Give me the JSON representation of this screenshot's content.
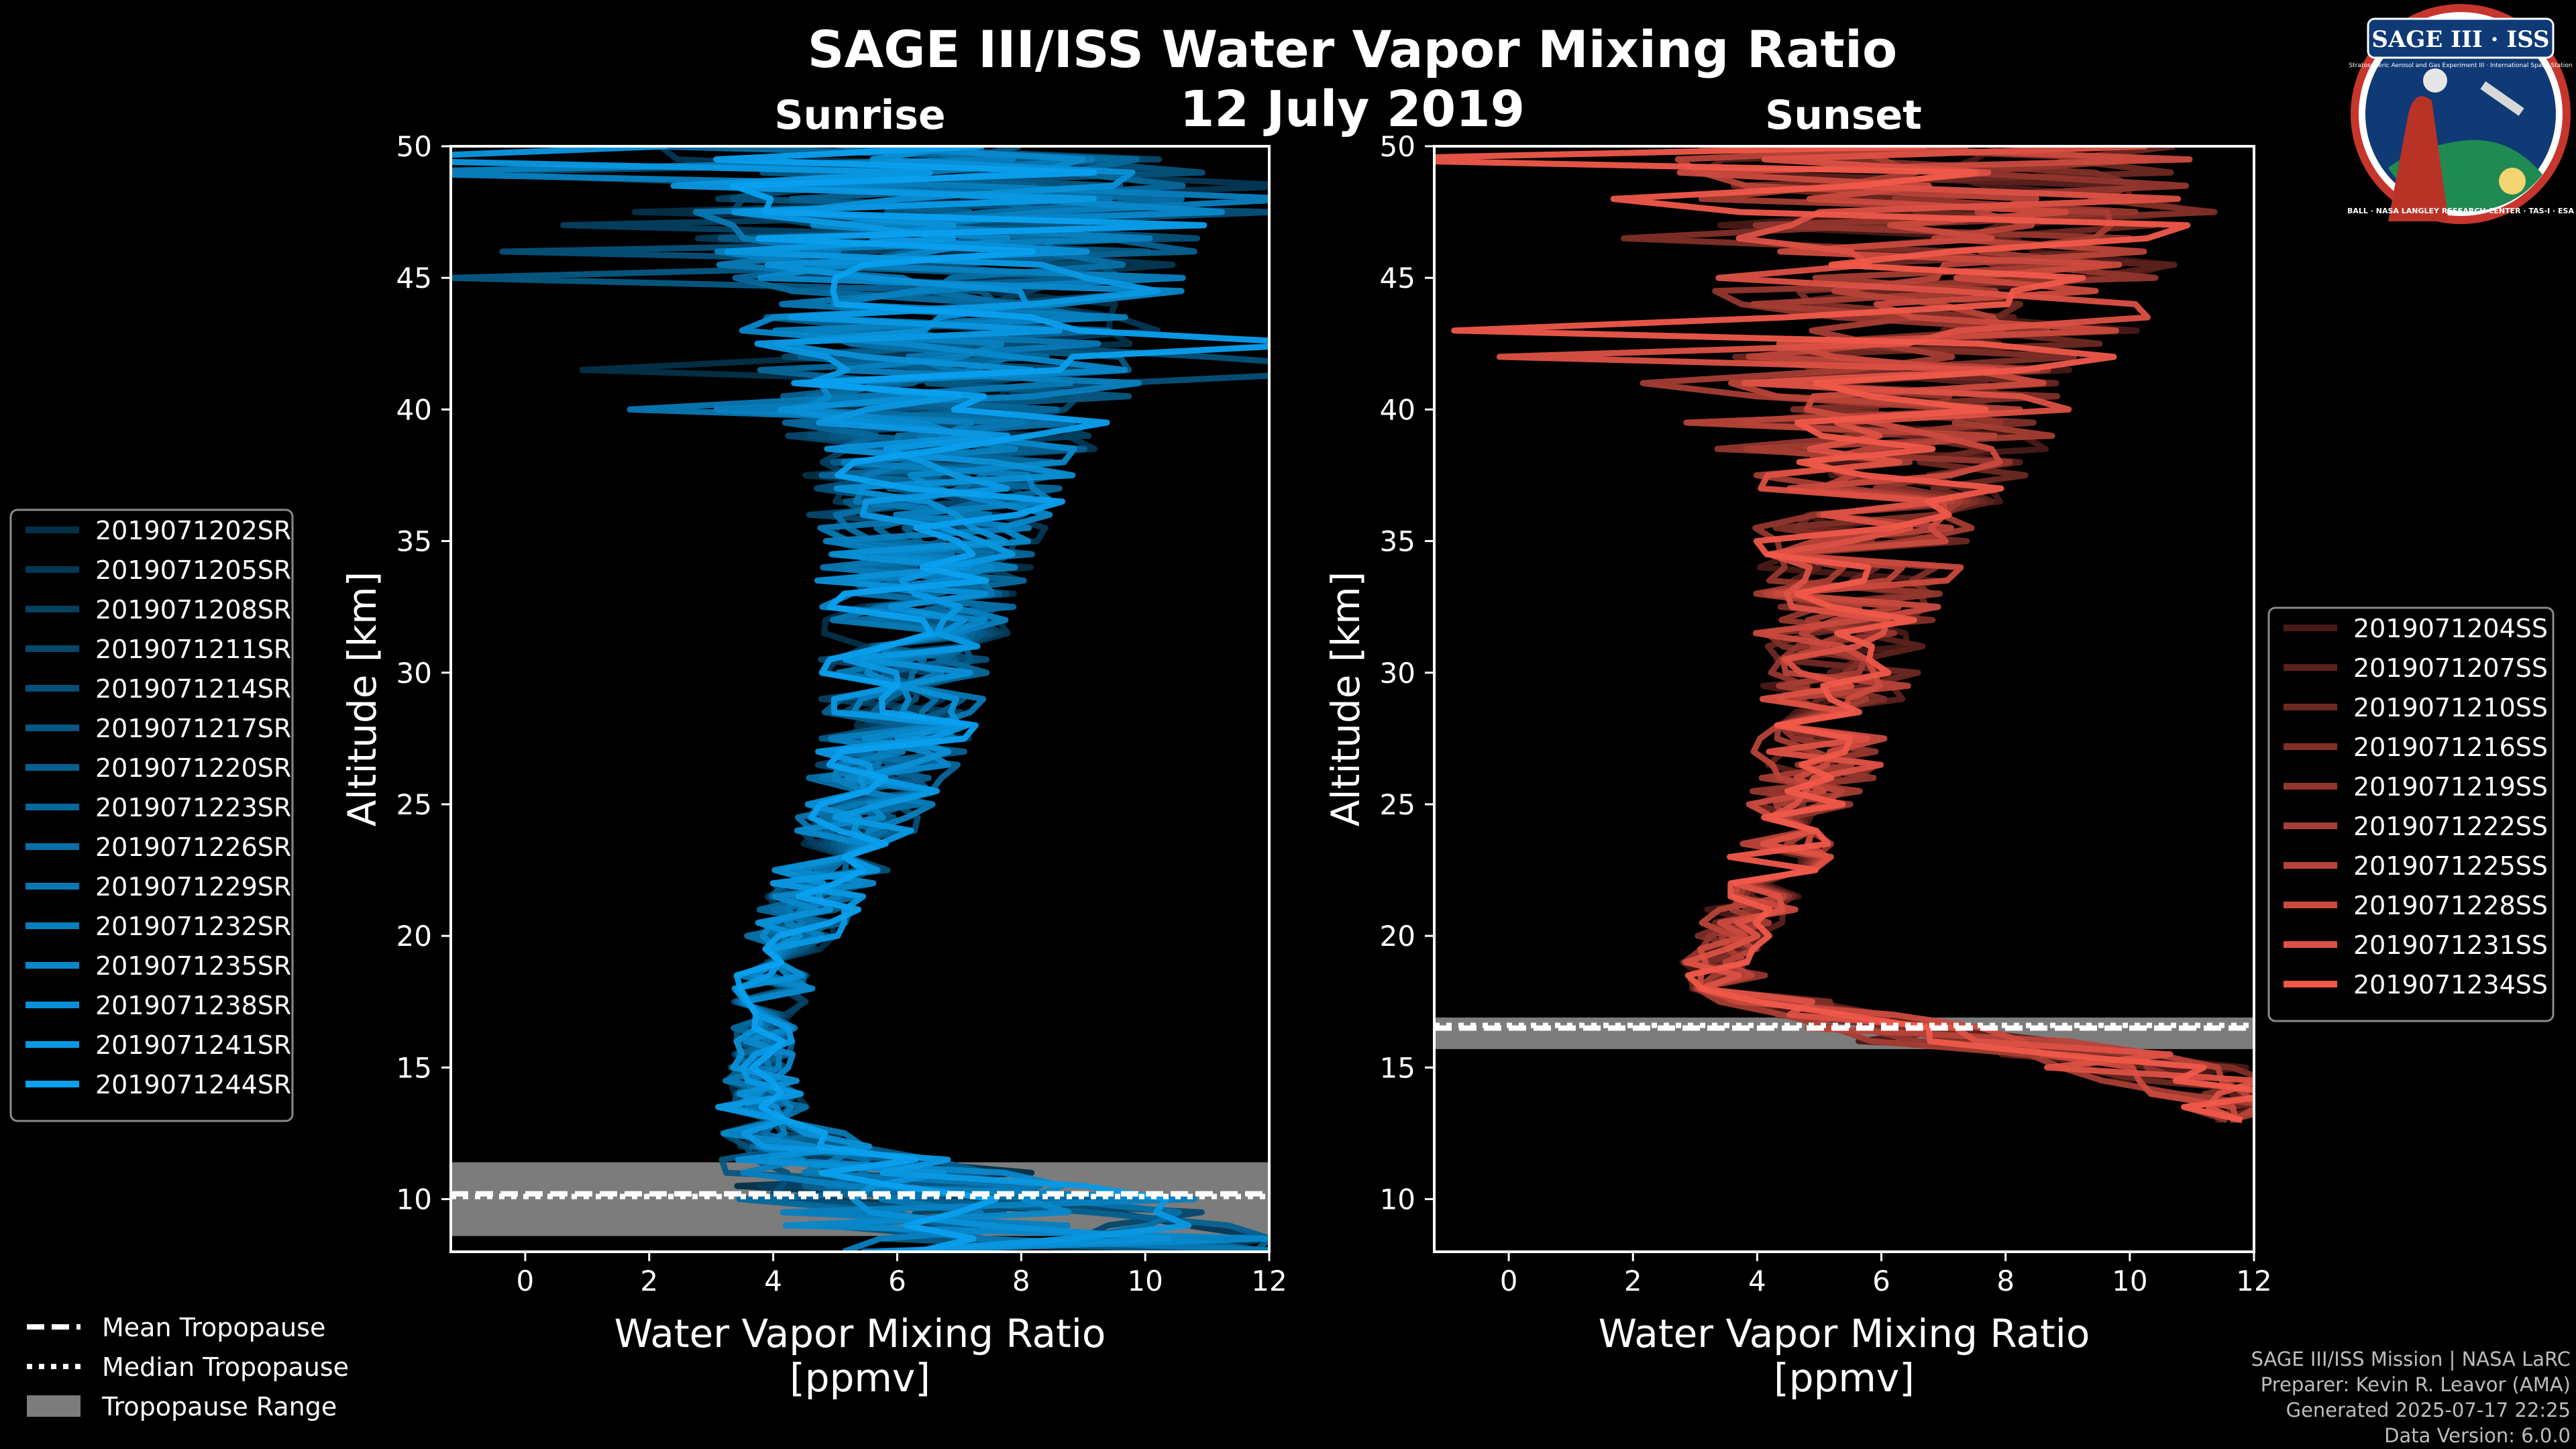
{
  "figure": {
    "title": "SAGE III/ISS Water Vapor Mixing Ratio",
    "date": "12 July 2019",
    "credits": [
      "SAGE III/ISS Mission | NASA LaRC",
      "Preparer: Kevin R. Leavor (AMA)",
      "Generated 2025-07-17 22:25",
      "Data Version: 6.0.0"
    ],
    "logo_text": "SAGE III · ISS",
    "logo_ring_text": "BALL · NASA LANGLEY RESEARCH CENTER · TAS-I · ESA",
    "logo_subtext": "Stratospheric Aerosol and Gas Experiment III · International Space Station"
  },
  "legend_tropopause": {
    "items": [
      {
        "label": "Mean Tropopause",
        "style": "dashed"
      },
      {
        "label": "Median Tropopause",
        "style": "dotted"
      },
      {
        "label": "Tropopause Range",
        "style": "patch"
      }
    ]
  },
  "chart_data": [
    {
      "type": "line",
      "panel": "sunrise",
      "title": "Sunrise",
      "xlabel": "Water Vapor Mixing Ratio\n[ppmv]",
      "ylabel": "Altitude [km]",
      "xlim": [
        -1.2,
        12
      ],
      "ylim": [
        8,
        50
      ],
      "xticks": [
        0,
        2,
        4,
        6,
        8,
        10,
        12
      ],
      "yticks": [
        10,
        15,
        20,
        25,
        30,
        35,
        40,
        45,
        50
      ],
      "base_color": "#0aa0ef",
      "tropopause": {
        "mean": 10.2,
        "median": 10.1,
        "range": [
          8.6,
          11.4
        ]
      },
      "legend_position": "left",
      "profile_model": {
        "altitude_km": [
          8,
          10,
          12,
          14,
          15,
          16,
          17,
          18,
          19,
          20,
          22,
          24,
          26,
          28,
          30,
          32,
          35,
          38,
          41,
          44,
          47,
          50
        ],
        "median_ppmv": [
          9.0,
          7.0,
          4.3,
          3.8,
          3.8,
          3.8,
          3.9,
          4.0,
          4.1,
          4.3,
          4.8,
          5.3,
          5.7,
          6.0,
          6.2,
          6.3,
          6.5,
          6.7,
          6.8,
          6.9,
          6.8,
          6.5
        ],
        "spread_ppmv": [
          3.0,
          3.0,
          1.0,
          0.5,
          0.4,
          0.4,
          0.4,
          0.5,
          0.5,
          0.6,
          0.7,
          0.8,
          0.9,
          1.0,
          1.1,
          1.2,
          1.4,
          1.8,
          2.4,
          2.8,
          3.2,
          3.4
        ]
      },
      "series": [
        {
          "name": "2019071202SR"
        },
        {
          "name": "2019071205SR"
        },
        {
          "name": "2019071208SR"
        },
        {
          "name": "2019071211SR"
        },
        {
          "name": "2019071214SR"
        },
        {
          "name": "2019071217SR"
        },
        {
          "name": "2019071220SR"
        },
        {
          "name": "2019071223SR"
        },
        {
          "name": "2019071226SR"
        },
        {
          "name": "2019071229SR"
        },
        {
          "name": "2019071232SR"
        },
        {
          "name": "2019071235SR"
        },
        {
          "name": "2019071238SR"
        },
        {
          "name": "2019071241SR"
        },
        {
          "name": "2019071244SR"
        }
      ]
    },
    {
      "type": "line",
      "panel": "sunset",
      "title": "Sunset",
      "xlabel": "Water Vapor Mixing Ratio\n[ppmv]",
      "ylabel": "Altitude [km]",
      "xlim": [
        -1.2,
        12
      ],
      "ylim": [
        8,
        50
      ],
      "xticks": [
        0,
        2,
        4,
        6,
        8,
        10,
        12
      ],
      "yticks": [
        10,
        15,
        20,
        25,
        30,
        35,
        40,
        45,
        50
      ],
      "base_color": "#f0584a",
      "tropopause": {
        "mean": 16.5,
        "median": 16.6,
        "range": [
          15.7,
          16.9
        ]
      },
      "legend_position": "right",
      "profile_model": {
        "altitude_km": [
          13,
          14,
          15,
          16,
          17,
          18,
          19,
          20,
          22,
          24,
          26,
          28,
          30,
          32,
          35,
          38,
          41,
          44,
          47,
          50
        ],
        "median_ppmv": [
          12.0,
          11.5,
          10.0,
          7.5,
          5.0,
          3.5,
          3.4,
          3.6,
          4.2,
          4.6,
          4.9,
          5.1,
          5.3,
          5.4,
          5.7,
          6.2,
          6.5,
          7.0,
          7.2,
          7.0
        ],
        "spread_ppmv": [
          0.5,
          1.0,
          1.5,
          1.5,
          1.0,
          0.6,
          0.5,
          0.5,
          0.6,
          0.7,
          0.8,
          0.9,
          1.0,
          1.1,
          1.4,
          1.8,
          2.3,
          2.8,
          3.2,
          3.5
        ]
      },
      "series": [
        {
          "name": "2019071204SS"
        },
        {
          "name": "2019071207SS"
        },
        {
          "name": "2019071210SS"
        },
        {
          "name": "2019071216SS"
        },
        {
          "name": "2019071219SS"
        },
        {
          "name": "2019071222SS"
        },
        {
          "name": "2019071225SS"
        },
        {
          "name": "2019071228SS"
        },
        {
          "name": "2019071231SS"
        },
        {
          "name": "2019071234SS"
        }
      ]
    }
  ]
}
